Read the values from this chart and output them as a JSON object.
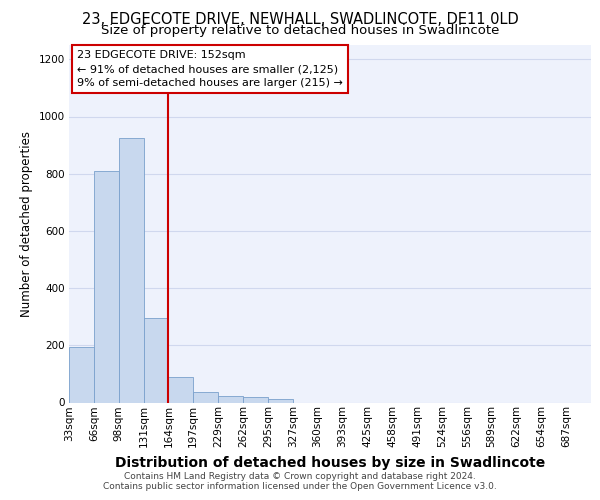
{
  "title1": "23, EDGECOTE DRIVE, NEWHALL, SWADLINCOTE, DE11 0LD",
  "title2": "Size of property relative to detached houses in Swadlincote",
  "xlabel": "Distribution of detached houses by size in Swadlincote",
  "ylabel": "Number of detached properties",
  "footer1": "Contains HM Land Registry data © Crown copyright and database right 2024.",
  "footer2": "Contains public sector information licensed under the Open Government Licence v3.0.",
  "bin_labels": [
    "33sqm",
    "66sqm",
    "98sqm",
    "131sqm",
    "164sqm",
    "197sqm",
    "229sqm",
    "262sqm",
    "295sqm",
    "327sqm",
    "360sqm",
    "393sqm",
    "425sqm",
    "458sqm",
    "491sqm",
    "524sqm",
    "556sqm",
    "589sqm",
    "622sqm",
    "654sqm",
    "687sqm"
  ],
  "bar_values": [
    195,
    810,
    925,
    295,
    88,
    35,
    22,
    18,
    12,
    0,
    0,
    0,
    0,
    0,
    0,
    0,
    0,
    0,
    0,
    0,
    0
  ],
  "bar_color": "#c8d8ee",
  "bar_edge_color": "#7aa0cc",
  "bg_color": "#eef2fc",
  "grid_color": "#d0d8ee",
  "vline_x": 4,
  "vline_color": "#cc0000",
  "annotation_lines": [
    "23 EDGECOTE DRIVE: 152sqm",
    "← 91% of detached houses are smaller (2,125)",
    "9% of semi-detached houses are larger (215) →"
  ],
  "annotation_box_color": "#cc0000",
  "ylim": [
    0,
    1250
  ],
  "yticks": [
    0,
    200,
    400,
    600,
    800,
    1000,
    1200
  ],
  "title1_fontsize": 10.5,
  "title2_fontsize": 9.5,
  "xlabel_fontsize": 10,
  "ylabel_fontsize": 8.5,
  "tick_fontsize": 7.5,
  "annotation_fontsize": 8,
  "footer_fontsize": 6.5
}
